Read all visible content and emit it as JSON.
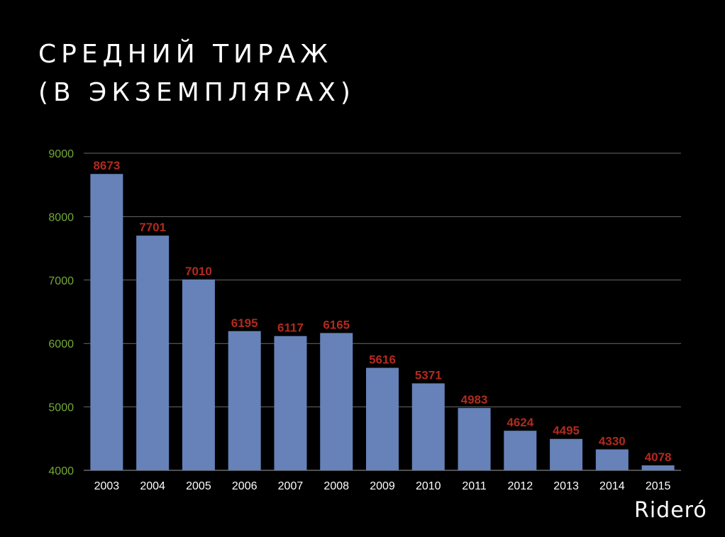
{
  "slide": {
    "title_line1": "СРЕДНИЙ ТИРАЖ",
    "title_line2": "(В ЭКЗЕМПЛЯРАХ)",
    "logo_text": "Rideró"
  },
  "colors": {
    "background": "#000000",
    "bar": "#6682b8",
    "value_label": "#b22a1e",
    "y_tick": "#75a838",
    "x_tick": "#ffffff",
    "grid": "#6a6a6a"
  },
  "chart_data": {
    "type": "bar",
    "title": "",
    "xlabel": "",
    "ylabel": "",
    "ylim": [
      4000,
      9000
    ],
    "yticks": [
      4000,
      5000,
      6000,
      7000,
      8000,
      9000
    ],
    "grid": true,
    "categories": [
      "2003",
      "2004",
      "2005",
      "2006",
      "2007",
      "2008",
      "2009",
      "2010",
      "2011",
      "2012",
      "2013",
      "2014",
      "2015"
    ],
    "values": [
      8673,
      7701,
      7010,
      6195,
      6117,
      6165,
      5616,
      5371,
      4983,
      4624,
      4495,
      4330,
      4078
    ]
  }
}
